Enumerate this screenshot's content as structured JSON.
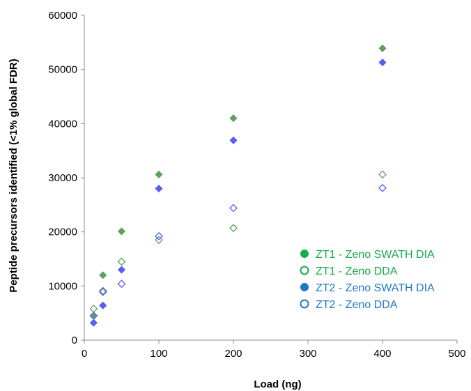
{
  "chart_data": {
    "type": "scatter",
    "title": "",
    "xlabel": "Load (ng)",
    "ylabel": "Peptide precursors identified (<1% global FDR)",
    "xlim": [
      0,
      500
    ],
    "ylim": [
      0,
      60000
    ],
    "x_ticks": [
      0,
      100,
      200,
      300,
      400,
      500
    ],
    "y_ticks": [
      0,
      10000,
      20000,
      30000,
      40000,
      50000,
      60000
    ],
    "grid": false,
    "legend_position": "bottom-right",
    "legend": [
      {
        "label": "ZT1 - Zeno SWATH DIA",
        "color": "#1aab4a",
        "marker": "filled-circle"
      },
      {
        "label": "ZT1 - Zeno DDA",
        "color": "#1aab4a",
        "marker": "open-circle"
      },
      {
        "label": "ZT2 - Zeno SWATH DIA",
        "color": "#1f77c9",
        "marker": "filled-circle"
      },
      {
        "label": "ZT2 - Zeno DDA",
        "color": "#1f77c9",
        "marker": "open-circle"
      }
    ],
    "series": [
      {
        "color": "#5fa05a",
        "marker": "filled-diamond",
        "points": [
          [
            12.5,
            4500
          ],
          [
            25,
            12000
          ],
          [
            50,
            20100
          ],
          [
            100,
            30600
          ],
          [
            200,
            41000
          ],
          [
            400,
            53900
          ]
        ]
      },
      {
        "color": "#5fa05a",
        "marker": "open-diamond",
        "points": [
          [
            12.5,
            5800
          ],
          [
            25,
            9100
          ],
          [
            50,
            14500
          ],
          [
            100,
            18500
          ],
          [
            200,
            20700
          ],
          [
            400,
            30600
          ]
        ]
      },
      {
        "color": "#5b5bf5",
        "marker": "filled-diamond",
        "points": [
          [
            12.5,
            3200
          ],
          [
            25,
            6400
          ],
          [
            50,
            13000
          ],
          [
            100,
            28000
          ],
          [
            200,
            36900
          ],
          [
            400,
            51300
          ]
        ]
      },
      {
        "color": "#5b5bf5",
        "marker": "open-diamond",
        "points": [
          [
            12.5,
            4500
          ],
          [
            25,
            8900
          ],
          [
            50,
            10400
          ],
          [
            100,
            19200
          ],
          [
            200,
            24400
          ],
          [
            400,
            28100
          ]
        ]
      }
    ]
  }
}
